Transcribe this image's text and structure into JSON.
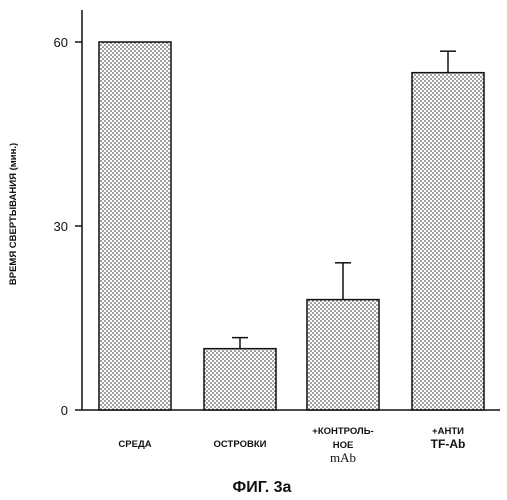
{
  "chart_data": {
    "type": "bar",
    "categories": [
      [
        "СРЕДА"
      ],
      [
        "ОСТРОВКИ"
      ],
      [
        "+КОНТРОЛЬ-",
        "НОЕ",
        "mAb"
      ],
      [
        "+АНТИ",
        "TF-Ab"
      ]
    ],
    "values": [
      60,
      10,
      18,
      55
    ],
    "errors": [
      0,
      1.8,
      6,
      3.5
    ],
    "ylabel": "ВРЕМЯ СВЕРТЫВАНИЯ (мин.)",
    "yticks": [
      0,
      30,
      60
    ],
    "ylim": [
      0,
      66
    ],
    "caption": "ФИГ. 3а",
    "bar_fill": "stippled",
    "colors": {
      "ink": "#111111",
      "bar_bg": "#ffffff"
    }
  }
}
